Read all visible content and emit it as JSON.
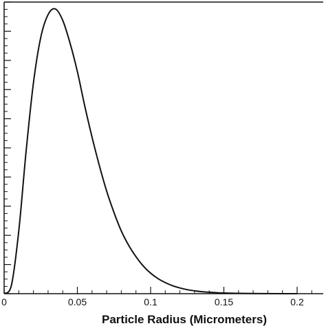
{
  "chart_data": {
    "type": "line",
    "xlabel": "Particle Radius (Micrometers)",
    "ylabel": "",
    "title": "",
    "xlim": [
      0,
      0.2
    ],
    "ylim": [
      0,
      1
    ],
    "x_ticks": [
      "0",
      "0.05",
      "0.1",
      "0.15",
      "0.2"
    ],
    "x_tick_values": [
      0,
      0.05,
      0.1,
      0.15,
      0.2
    ],
    "y_tick_count_major": 10,
    "grid": false,
    "series": [
      {
        "x": [
          0,
          0.005,
          0.01,
          0.015,
          0.02,
          0.025,
          0.03,
          0.035,
          0.04,
          0.045,
          0.05,
          0.055,
          0.06,
          0.065,
          0.07,
          0.075,
          0.08,
          0.085,
          0.09,
          0.095,
          0.1,
          0.105,
          0.11,
          0.115,
          0.12,
          0.125,
          0.13,
          0.135,
          0.14,
          0.145,
          0.15,
          0.16,
          0.17,
          0.18,
          0.19,
          0.2
        ],
        "y": [
          0.0,
          0.03,
          0.22,
          0.5,
          0.74,
          0.9,
          0.98,
          1.0,
          0.96,
          0.88,
          0.78,
          0.66,
          0.55,
          0.45,
          0.36,
          0.285,
          0.22,
          0.17,
          0.13,
          0.097,
          0.072,
          0.053,
          0.039,
          0.028,
          0.02,
          0.014,
          0.01,
          0.007,
          0.005,
          0.0035,
          0.0025,
          0.0012,
          0.0006,
          0.0003,
          0.0001,
          0.0
        ]
      }
    ]
  }
}
